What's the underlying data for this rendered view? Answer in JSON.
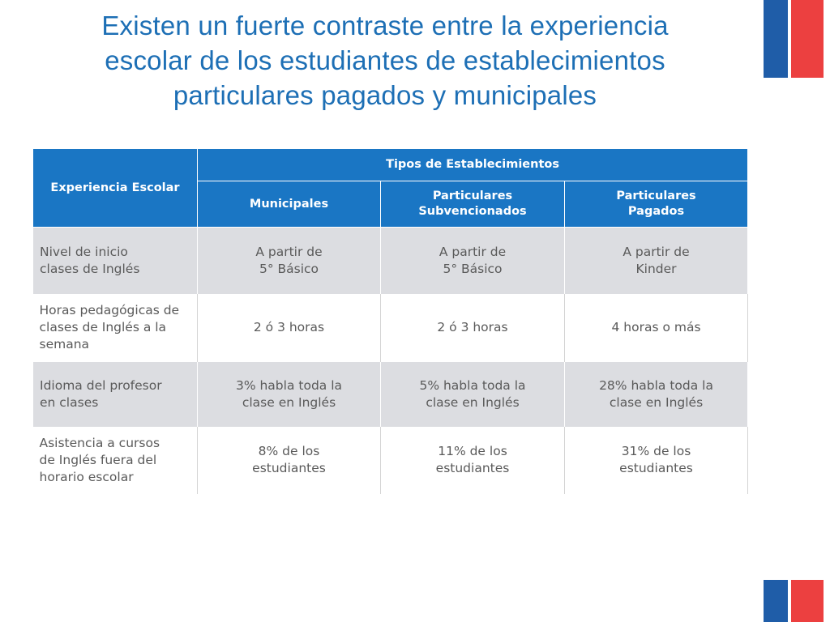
{
  "title": {
    "line1": "Existen un fuerte contraste entre la experiencia",
    "line2": "escolar de los estudiantes de establecimientos",
    "line3": "particulares pagados y municipales"
  },
  "colors": {
    "title": "#1d6fb5",
    "header_bg": "#1a76c4",
    "row_shade": "#dcdde1",
    "flag_blue": "#1f5da8",
    "flag_red": "#ec4040"
  },
  "table": {
    "row_header": "Experiencia Escolar",
    "group_header": "Tipos de Establecimientos",
    "columns": [
      {
        "lines": [
          "Municipales"
        ]
      },
      {
        "lines": [
          "Particulares",
          "Subvencionados"
        ]
      },
      {
        "lines": [
          "Particulares",
          "Pagados"
        ]
      }
    ],
    "rows": [
      {
        "label": [
          "Nivel de inicio",
          "clases de Inglés"
        ],
        "cells": [
          [
            "A partir de",
            "5° Básico"
          ],
          [
            "A partir de",
            "5° Básico"
          ],
          [
            "A partir de",
            "Kinder"
          ]
        ]
      },
      {
        "label": [
          "Horas pedagógicas de",
          "clases de Inglés a la",
          "semana"
        ],
        "cells": [
          [
            "2 ó 3 horas"
          ],
          [
            "2 ó 3 horas"
          ],
          [
            "4 horas o más"
          ]
        ]
      },
      {
        "label": [
          "Idioma del profesor",
          "en clases"
        ],
        "cells": [
          [
            "3% habla toda la",
            "clase en Inglés"
          ],
          [
            "5% habla toda la",
            "clase en Inglés"
          ],
          [
            "28% habla toda la",
            "clase en Inglés"
          ]
        ]
      },
      {
        "label": [
          "Asistencia a cursos",
          "de Inglés fuera del",
          "horario escolar"
        ],
        "cells": [
          [
            "8% de los",
            "estudiantes"
          ],
          [
            "11% de los",
            "estudiantes"
          ],
          [
            "31% de los",
            "estudiantes"
          ]
        ]
      }
    ]
  }
}
